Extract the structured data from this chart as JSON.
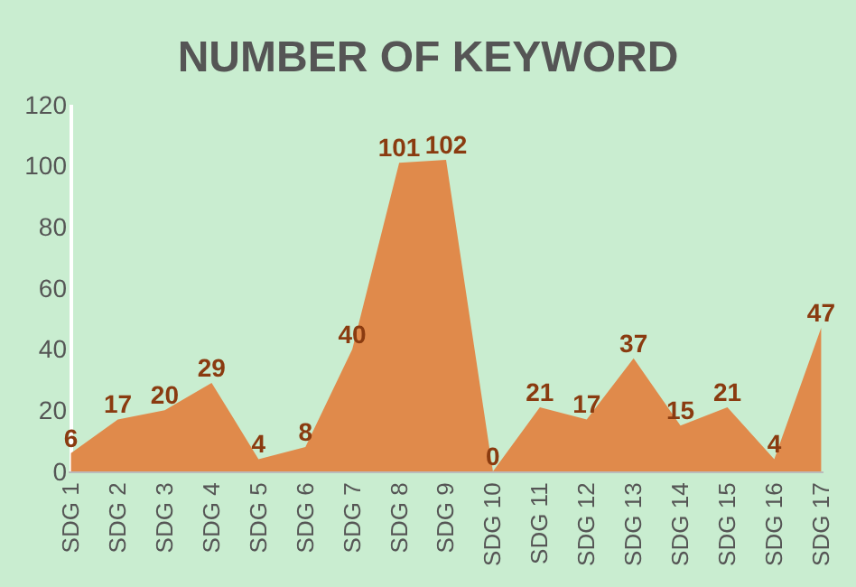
{
  "chart_data": {
    "type": "area",
    "title": "NUMBER OF KEYWORD",
    "categories": [
      "SDG 1",
      "SDG 2",
      "SDG 3",
      "SDG 4",
      "SDG 5",
      "SDG 6",
      "SDG 7",
      "SDG 8",
      "SDG 9",
      "SDG 10",
      "SDG 11",
      "SDG 12",
      "SDG 13",
      "SDG 14",
      "SDG 15",
      "SDG 16",
      "SDG 17"
    ],
    "values": [
      6,
      17,
      20,
      29,
      4,
      8,
      40,
      101,
      102,
      0,
      21,
      17,
      37,
      15,
      21,
      4,
      47
    ],
    "color": "#e08a4b",
    "ylim": [
      0,
      120
    ],
    "yticks": [
      0,
      20,
      40,
      60,
      80,
      100,
      120
    ],
    "data_labels": true,
    "grid": false,
    "legend": false
  }
}
